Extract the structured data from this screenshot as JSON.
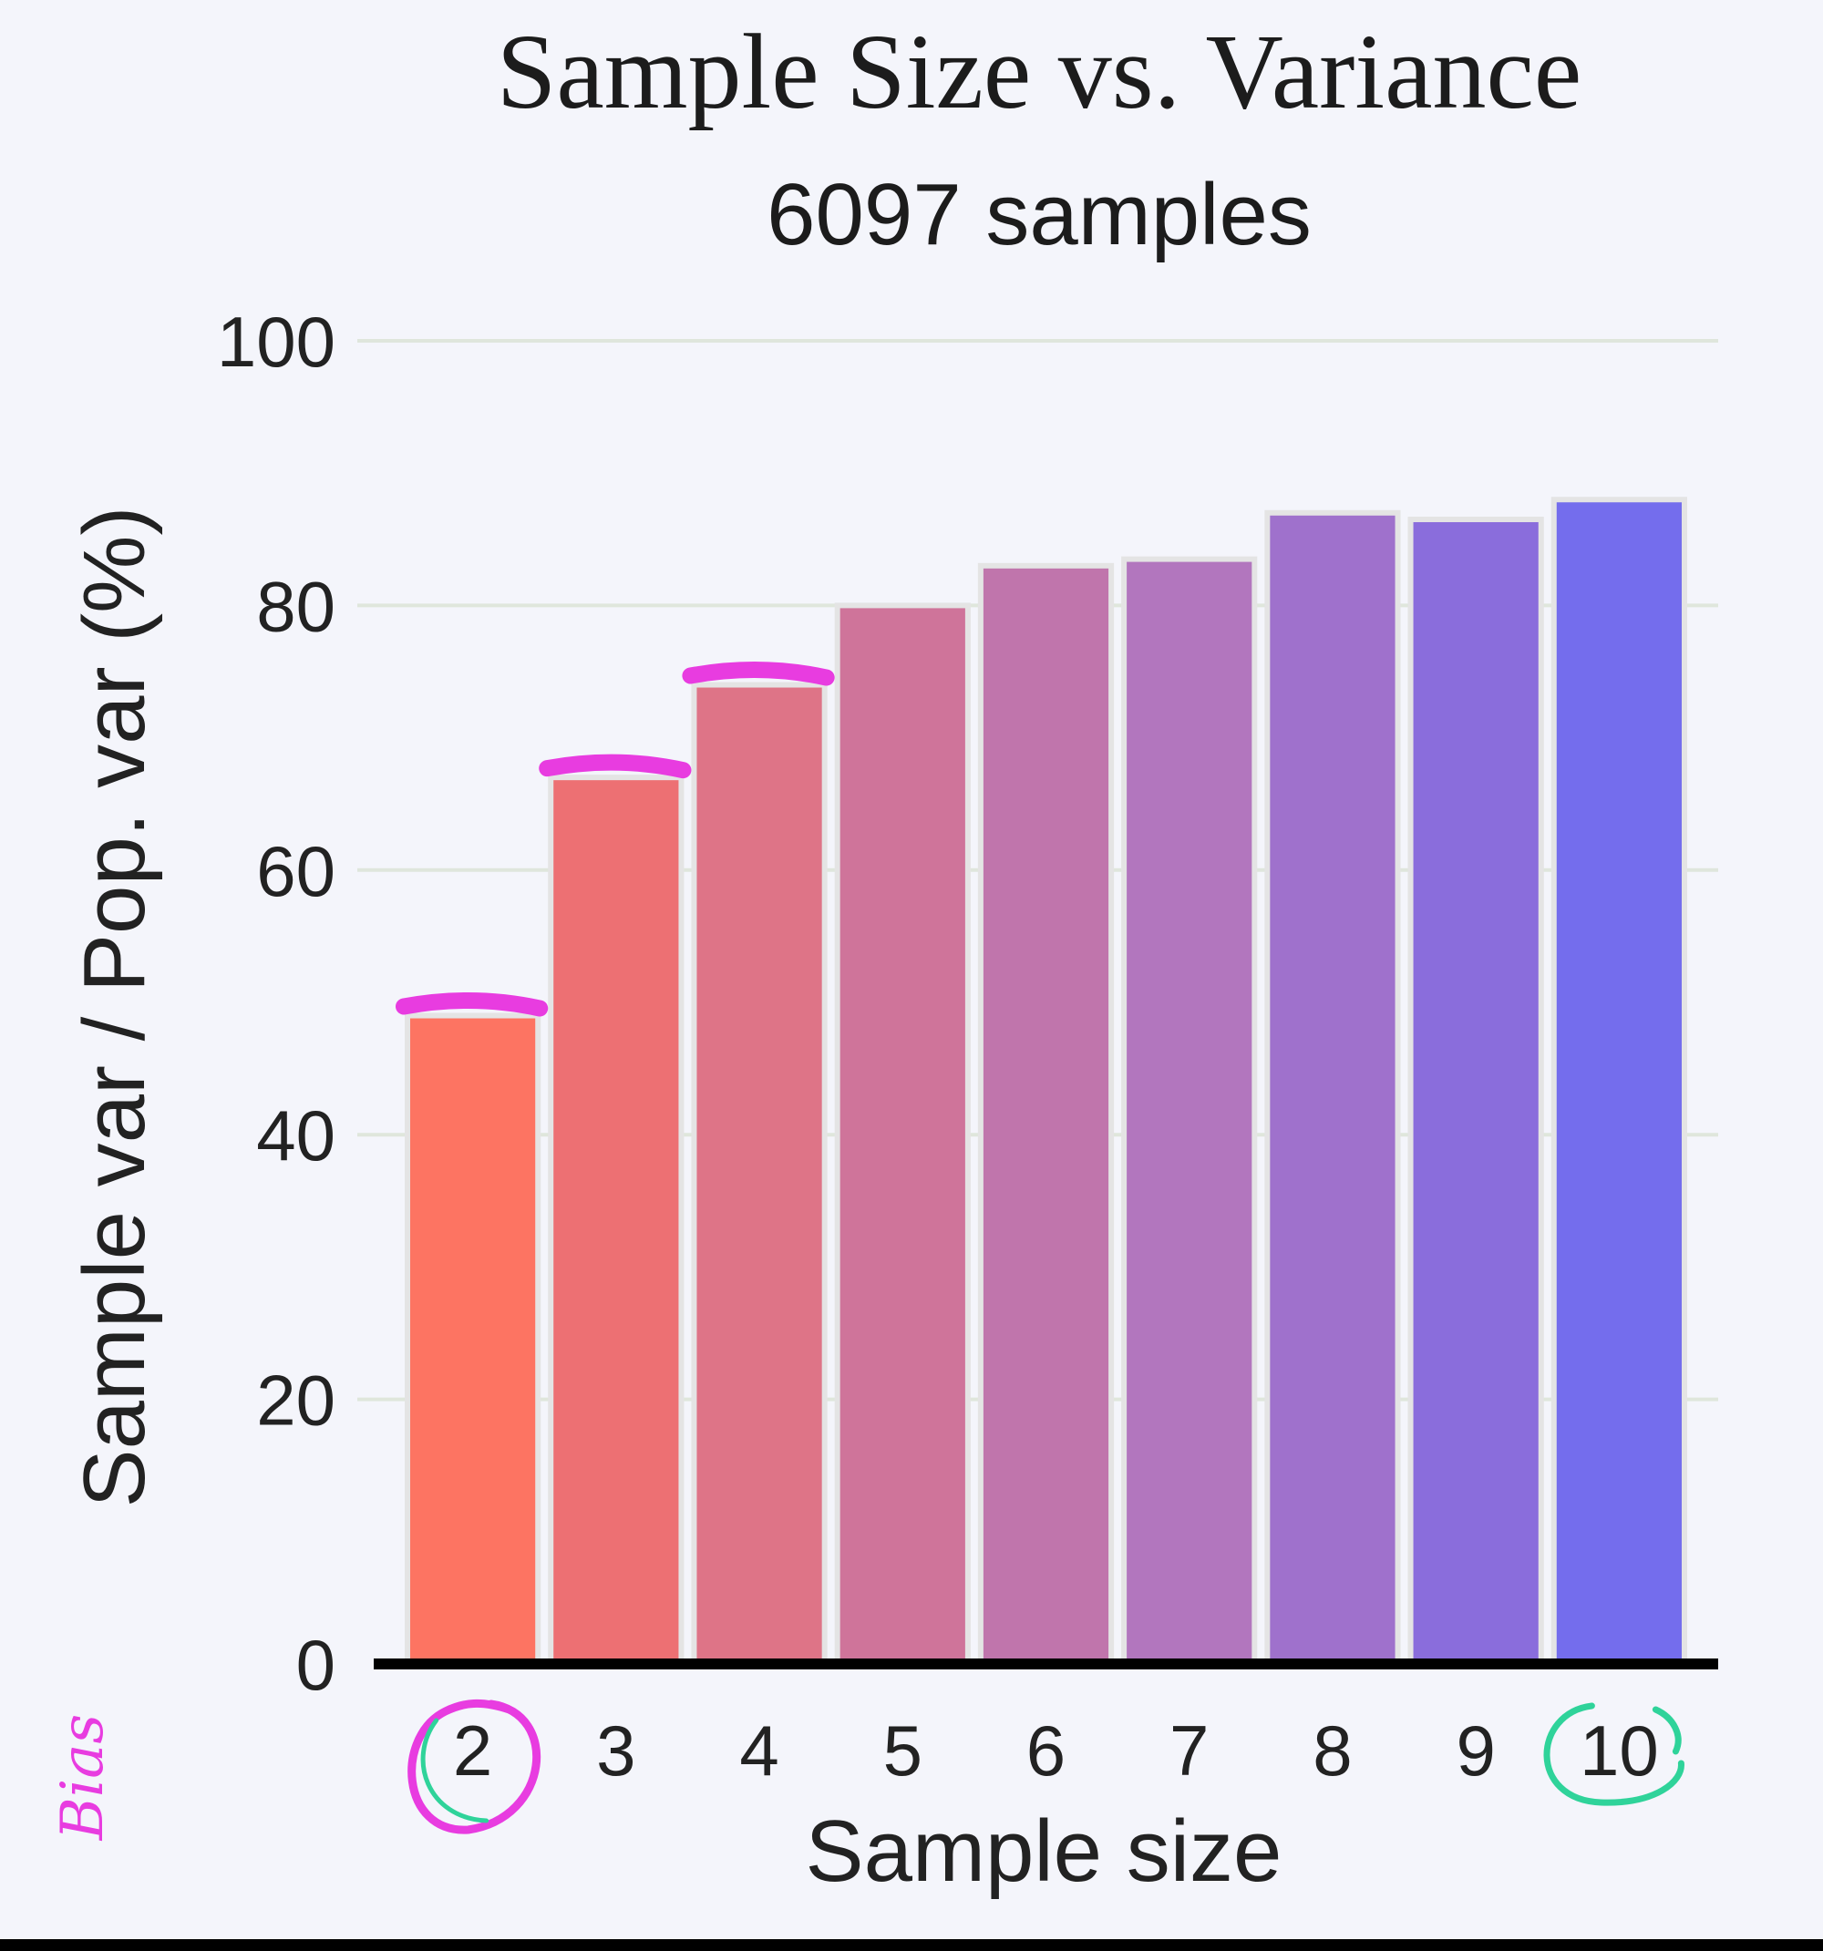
{
  "chart_data": {
    "type": "bar",
    "title": "Sample Size vs. Variance",
    "subtitle": "6097 samples",
    "xlabel": "Sample size",
    "ylabel": "Sample var / Pop. var (%)",
    "categories": [
      "2",
      "3",
      "4",
      "5",
      "6",
      "7",
      "8",
      "9",
      "10"
    ],
    "values": [
      49,
      67,
      74,
      80,
      83,
      83.5,
      87,
      86.5,
      88
    ],
    "ylim": [
      0,
      100
    ],
    "yticks": [
      0,
      20,
      40,
      60,
      80,
      100
    ],
    "grid": true,
    "colors": [
      "#fd7462",
      "#ed7073",
      "#de7487",
      "#cf749a",
      "#c075ac",
      "#b276be",
      "#9f71cc",
      "#8a6ddc",
      "#746ded"
    ]
  },
  "annotations": {
    "handwritten_text": "Bias",
    "circled_categories": [
      "2",
      "10"
    ],
    "underlined_bars": [
      "2",
      "3",
      "4"
    ],
    "ink_colors": {
      "magenta": "#e83ce0",
      "green": "#2fd39a"
    }
  }
}
